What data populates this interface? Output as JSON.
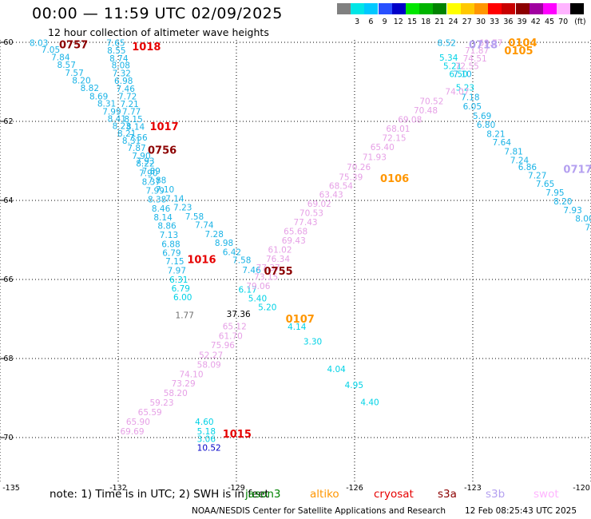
{
  "header": {
    "title": "00:00 — 11:59 UTC 02/09/2025",
    "subtitle": "12 hour collection of altimeter wave heights"
  },
  "legend": {
    "items": [
      {
        "color": "#808080",
        "label": ""
      },
      {
        "color": "#00e6e6",
        "label": "3"
      },
      {
        "color": "#00c8ff",
        "label": "6"
      },
      {
        "color": "#2850ff",
        "label": "9"
      },
      {
        "color": "#0000c8",
        "label": "12"
      },
      {
        "color": "#00e600",
        "label": "15"
      },
      {
        "color": "#00b400",
        "label": "18"
      },
      {
        "color": "#008200",
        "label": "21"
      },
      {
        "color": "#ffff00",
        "label": "24"
      },
      {
        "color": "#ffc800",
        "label": "27"
      },
      {
        "color": "#ff9600",
        "label": "30"
      },
      {
        "color": "#ff0000",
        "label": "33"
      },
      {
        "color": "#c80000",
        "label": "36"
      },
      {
        "color": "#8c0000",
        "label": "39"
      },
      {
        "color": "#a000a0",
        "label": "42"
      },
      {
        "color": "#ff00ff",
        "label": "45"
      },
      {
        "color": "#ffb4ff",
        "label": "70"
      },
      {
        "color": "#000000",
        "label": "(ft)"
      }
    ]
  },
  "map": {
    "lat_labels": [
      "-60",
      "-62",
      "-64",
      "-66",
      "-68",
      "-70"
    ],
    "lon_labels": [
      "-135",
      "-132",
      "-129",
      "-126",
      "-123",
      "-120"
    ]
  },
  "tracks": [
    {
      "color": "#1ab3e6",
      "points": [
        {
          "t": "8.03",
          "lon": -134.25,
          "lat": -60.01
        },
        {
          "t": "7.05",
          "lon": -133.95,
          "lat": -60.18
        },
        {
          "t": "7.84",
          "lon": -133.7,
          "lat": -60.37
        },
        {
          "t": "8.57",
          "lon": -133.55,
          "lat": -60.57
        },
        {
          "t": "7.57",
          "lon": -133.35,
          "lat": -60.77
        },
        {
          "t": "8.20",
          "lon": -133.17,
          "lat": -60.96
        },
        {
          "t": "8.82",
          "lon": -132.96,
          "lat": -61.15
        },
        {
          "t": "8.69",
          "lon": -132.73,
          "lat": -61.36
        },
        {
          "t": "8.31",
          "lon": -132.53,
          "lat": -61.55
        },
        {
          "t": "7.99",
          "lon": -132.4,
          "lat": -61.75
        },
        {
          "t": "8.41",
          "lon": -132.27,
          "lat": -61.93
        },
        {
          "t": "8.23",
          "lon": -132.15,
          "lat": -62.11
        },
        {
          "t": "8.21",
          "lon": -132.02,
          "lat": -62.3
        },
        {
          "t": "8.31",
          "lon": -131.9,
          "lat": -62.48
        },
        {
          "t": "7.87",
          "lon": -131.77,
          "lat": -62.67
        },
        {
          "t": "7.90",
          "lon": -131.65,
          "lat": -62.87
        },
        {
          "t": "8.22",
          "lon": -131.55,
          "lat": -63.06
        },
        {
          "t": "7.90",
          "lon": -131.47,
          "lat": -63.3
        },
        {
          "t": "8.37",
          "lon": -131.4,
          "lat": -63.53
        },
        {
          "t": "7.99",
          "lon": -131.3,
          "lat": -63.75
        },
        {
          "t": "8.38",
          "lon": -131.25,
          "lat": -63.97
        },
        {
          "t": "8.46",
          "lon": -131.15,
          "lat": -64.2
        },
        {
          "t": "8.14",
          "lon": -131.1,
          "lat": -64.42
        },
        {
          "t": "8.86",
          "lon": -131.0,
          "lat": -64.64
        },
        {
          "t": "7.13",
          "lon": -130.95,
          "lat": -64.87
        },
        {
          "t": "6.88",
          "lon": -130.9,
          "lat": -65.1
        },
        {
          "t": "6.79",
          "lon": -130.88,
          "lat": -65.32
        },
        {
          "t": "7.15",
          "lon": -130.8,
          "lat": -65.54
        },
        {
          "t": "7.97",
          "lon": -130.75,
          "lat": -65.77
        }
      ]
    },
    {
      "color": "#00d2e6",
      "points": [
        {
          "t": "6.31",
          "lon": -130.7,
          "lat": -66.0
        },
        {
          "t": "6.79",
          "lon": -130.65,
          "lat": -66.22
        },
        {
          "t": "6.00",
          "lon": -130.6,
          "lat": -66.44
        }
      ]
    },
    {
      "color": "#1ab3e6",
      "points": [
        {
          "t": "7.65",
          "lon": -132.3,
          "lat": -60.01
        },
        {
          "t": "8.55",
          "lon": -132.28,
          "lat": -60.2
        },
        {
          "t": "8.74",
          "lon": -132.22,
          "lat": -60.4
        },
        {
          "t": "8.08",
          "lon": -132.17,
          "lat": -60.58
        },
        {
          "t": "7.32",
          "lon": -132.15,
          "lat": -60.78
        },
        {
          "t": "6.98",
          "lon": -132.1,
          "lat": -60.97
        },
        {
          "t": "7.46",
          "lon": -132.05,
          "lat": -61.17
        },
        {
          "t": "7.72",
          "lon": -132.0,
          "lat": -61.36
        },
        {
          "t": "7.21",
          "lon": -131.95,
          "lat": -61.56
        },
        {
          "t": "7.77",
          "lon": -131.9,
          "lat": -61.75
        },
        {
          "t": "8.15",
          "lon": -131.85,
          "lat": -61.94
        },
        {
          "t": "8.14",
          "lon": -131.8,
          "lat": -62.13
        },
        {
          "t": "7.56",
          "lon": -131.73,
          "lat": -62.4
        },
        {
          "t": "7.93",
          "lon": -131.55,
          "lat": -63.0
        },
        {
          "t": "7.89",
          "lon": -131.4,
          "lat": -63.25
        },
        {
          "t": "7.88",
          "lon": -131.25,
          "lat": -63.48
        },
        {
          "t": "7.10",
          "lon": -131.05,
          "lat": -63.72
        },
        {
          "t": "7.14",
          "lon": -130.8,
          "lat": -63.95
        },
        {
          "t": "7.23",
          "lon": -130.6,
          "lat": -64.17
        },
        {
          "t": "7.58",
          "lon": -130.3,
          "lat": -64.4
        },
        {
          "t": "7.74",
          "lon": -130.05,
          "lat": -64.62
        },
        {
          "t": "7.28",
          "lon": -129.8,
          "lat": -64.85
        },
        {
          "t": "8.98",
          "lon": -129.55,
          "lat": -65.07
        },
        {
          "t": "6.42",
          "lon": -129.35,
          "lat": -65.3
        },
        {
          "t": "7.58",
          "lon": -129.1,
          "lat": -65.5
        },
        {
          "t": "7.46",
          "lon": -128.85,
          "lat": -65.76
        }
      ]
    },
    {
      "color": "#1ab3e6",
      "points": [
        {
          "t": "8.52",
          "lon": -123.9,
          "lat": -60.01
        },
        {
          "t": "7.10",
          "lon": -123.5,
          "lat": -60.8
        },
        {
          "t": "7.18",
          "lon": -123.3,
          "lat": -61.38
        },
        {
          "t": "6.05",
          "lon": -123.25,
          "lat": -61.62
        },
        {
          "t": "5.69",
          "lon": -123.0,
          "lat": -61.86
        },
        {
          "t": "6.80",
          "lon": -122.9,
          "lat": -62.08
        },
        {
          "t": "8.21",
          "lon": -122.65,
          "lat": -62.31
        },
        {
          "t": "7.64",
          "lon": -122.5,
          "lat": -62.53
        },
        {
          "t": "7.81",
          "lon": -122.2,
          "lat": -62.76
        },
        {
          "t": "7.24",
          "lon": -122.05,
          "lat": -62.98
        },
        {
          "t": "6.86",
          "lon": -121.85,
          "lat": -63.15
        },
        {
          "t": "7.27",
          "lon": -121.6,
          "lat": -63.36
        },
        {
          "t": "7.65",
          "lon": -121.4,
          "lat": -63.58
        },
        {
          "t": "7.95",
          "lon": -121.15,
          "lat": -63.8
        },
        {
          "t": "8.20",
          "lon": -120.95,
          "lat": -64.02
        },
        {
          "t": "7.93",
          "lon": -120.7,
          "lat": -64.24
        },
        {
          "t": "8.00",
          "lon": -120.4,
          "lat": -64.45
        },
        {
          "t": "7.32",
          "lon": -120.15,
          "lat": -64.68
        },
        {
          "t": "8.07",
          "lon": -119.9,
          "lat": -64.9
        },
        {
          "t": "8.91",
          "lon": -119.7,
          "lat": -65.12
        }
      ]
    },
    {
      "color": "#00d2e6",
      "points": [
        {
          "t": "5.34",
          "lon": -123.85,
          "lat": -60.38
        },
        {
          "t": "5.21",
          "lon": -123.75,
          "lat": -60.6
        },
        {
          "t": "6.50",
          "lon": -123.6,
          "lat": -60.8
        },
        {
          "t": "5.23",
          "lon": -123.43,
          "lat": -61.14
        },
        {
          "t": "6.17",
          "lon": -128.95,
          "lat": -66.25
        },
        {
          "t": "5.40",
          "lon": -128.7,
          "lat": -66.47
        },
        {
          "t": "5.20",
          "lon": -128.45,
          "lat": -66.7
        },
        {
          "t": "4.14",
          "lon": -127.7,
          "lat": -67.19
        },
        {
          "t": "3.30",
          "lon": -127.3,
          "lat": -67.57
        },
        {
          "t": "4.04",
          "lon": -126.7,
          "lat": -68.26
        },
        {
          "t": "4.95",
          "lon": -126.25,
          "lat": -68.67
        },
        {
          "t": "4.40",
          "lon": -125.85,
          "lat": -69.1
        },
        {
          "t": "4.60",
          "lon": -130.05,
          "lat": -69.6
        },
        {
          "t": "5.18",
          "lon": -130.0,
          "lat": -69.84
        },
        {
          "t": "3.06",
          "lon": -130.0,
          "lat": -70.03
        }
      ]
    },
    {
      "color": "#e6a0e6",
      "points": [
        {
          "t": "69.77",
          "lon": -122.85,
          "lat": -60.01
        },
        {
          "t": "71.87",
          "lon": -123.2,
          "lat": -60.2
        },
        {
          "t": "74.51",
          "lon": -123.25,
          "lat": -60.4
        },
        {
          "t": "72.55",
          "lon": -123.45,
          "lat": -60.6
        },
        {
          "t": "74.07",
          "lon": -123.7,
          "lat": -61.24
        },
        {
          "t": "70.52",
          "lon": -124.35,
          "lat": -61.48
        },
        {
          "t": "70.48",
          "lon": -124.5,
          "lat": -61.72
        },
        {
          "t": "69.08",
          "lon": -124.9,
          "lat": -61.95
        },
        {
          "t": "68.01",
          "lon": -125.2,
          "lat": -62.18
        },
        {
          "t": "72.15",
          "lon": -125.3,
          "lat": -62.41
        },
        {
          "t": "65.40",
          "lon": -125.6,
          "lat": -62.65
        },
        {
          "t": "71.93",
          "lon": -125.8,
          "lat": -62.9
        },
        {
          "t": "70.26",
          "lon": -126.2,
          "lat": -63.15
        },
        {
          "t": "75.39",
          "lon": -126.4,
          "lat": -63.4
        },
        {
          "t": "68.54",
          "lon": -126.65,
          "lat": -63.63
        },
        {
          "t": "63.43",
          "lon": -126.9,
          "lat": -63.85
        },
        {
          "t": "69.02",
          "lon": -127.2,
          "lat": -64.08
        },
        {
          "t": "70.53",
          "lon": -127.4,
          "lat": -64.31
        },
        {
          "t": "77.43",
          "lon": -127.55,
          "lat": -64.55
        },
        {
          "t": "65.68",
          "lon": -127.8,
          "lat": -64.78
        },
        {
          "t": "69.43",
          "lon": -127.85,
          "lat": -65.01
        },
        {
          "t": "61.02",
          "lon": -128.2,
          "lat": -65.24
        },
        {
          "t": "76.34",
          "lon": -128.25,
          "lat": -65.47
        },
        {
          "t": "77.37",
          "lon": -128.5,
          "lat": -65.7
        },
        {
          "t": "73.15",
          "lon": -128.55,
          "lat": -65.93
        },
        {
          "t": "79.06",
          "lon": -128.75,
          "lat": -66.16
        },
        {
          "t": "65.12",
          "lon": -129.35,
          "lat": -67.18
        },
        {
          "t": "61.70",
          "lon": -129.45,
          "lat": -67.42
        },
        {
          "t": "75.96",
          "lon": -129.65,
          "lat": -67.66
        },
        {
          "t": "52.27",
          "lon": -129.95,
          "lat": -67.91
        },
        {
          "t": "58.09",
          "lon": -130.0,
          "lat": -68.15
        },
        {
          "t": "74.10",
          "lon": -130.45,
          "lat": -68.39
        },
        {
          "t": "73.29",
          "lon": -130.65,
          "lat": -68.63
        },
        {
          "t": "58.20",
          "lon": -130.85,
          "lat": -68.87
        },
        {
          "t": "59.23",
          "lon": -131.2,
          "lat": -69.11
        },
        {
          "t": "65.59",
          "lon": -131.5,
          "lat": -69.35
        },
        {
          "t": "65.90",
          "lon": -131.8,
          "lat": -69.6
        },
        {
          "t": "69.69",
          "lon": -131.95,
          "lat": -69.84
        }
      ]
    },
    {
      "color": "#000000",
      "points": [
        {
          "t": "37.36",
          "lon": -129.25,
          "lat": -66.87
        }
      ]
    },
    {
      "color": "#6e6e6e",
      "points": [
        {
          "t": "1.77",
          "lon": -130.55,
          "lat": -66.9
        }
      ]
    },
    {
      "color": "#0000c8",
      "points": [
        {
          "t": "10.52",
          "lon": -130.0,
          "lat": -70.25
        }
      ]
    }
  ],
  "time_labels": [
    {
      "t": "0757",
      "color": "#8c0000",
      "lon": -133.5,
      "lat": -60.05
    },
    {
      "t": "1018",
      "color": "#e60000",
      "lon": -131.65,
      "lat": -60.1
    },
    {
      "t": "1017",
      "color": "#e60000",
      "lon": -131.2,
      "lat": -62.12
    },
    {
      "t": "0756",
      "color": "#8c0000",
      "lon": -131.25,
      "lat": -62.72
    },
    {
      "t": "1016",
      "color": "#e60000",
      "lon": -130.25,
      "lat": -65.48
    },
    {
      "t": "0755",
      "color": "#8c0000",
      "lon": -128.3,
      "lat": -65.78
    },
    {
      "t": "0107",
      "color": "#ff9600",
      "lon": -127.75,
      "lat": -66.99
    },
    {
      "t": "1015",
      "color": "#e60000",
      "lon": -129.35,
      "lat": -69.9
    },
    {
      "t": "0106",
      "color": "#ff9600",
      "lon": -125.35,
      "lat": -63.43
    },
    {
      "t": "0718",
      "color": "#b4a0f0",
      "lon": -123.1,
      "lat": -60.05
    },
    {
      "t": "0104",
      "color": "#ff9600",
      "lon": -122.1,
      "lat": -60.0
    },
    {
      "t": "0105",
      "color": "#ff9600",
      "lon": -122.2,
      "lat": -60.2
    },
    {
      "t": "0717",
      "color": "#b4a0f0",
      "lon": -120.7,
      "lat": -63.2
    }
  ],
  "footer": {
    "note": "note: 1) Time is in UTC; 2) SWH is in feet",
    "missions": [
      {
        "name": "jason3",
        "color": "#008200"
      },
      {
        "name": "altiko",
        "color": "#ff9600"
      },
      {
        "name": "cryosat",
        "color": "#e60000"
      },
      {
        "name": "s3a",
        "color": "#8c0000"
      },
      {
        "name": "s3b",
        "color": "#b4a0f0"
      },
      {
        "name": "swot",
        "color": "#ffb4ff"
      }
    ],
    "credit": "NOAA/NESDIS Center for Satellite Applications and Research",
    "timestamp": "12 Feb 08:25:43 UTC 2025"
  }
}
